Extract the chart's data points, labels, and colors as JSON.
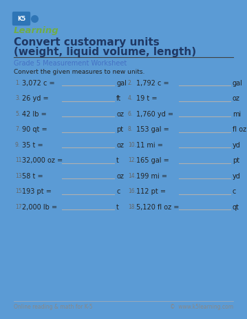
{
  "title_line1": "Convert customary units",
  "title_line2": "(weight, liquid volume, length)",
  "subtitle": "Grade 5 Measurement Worksheet",
  "instruction": "Convert the given measures to new units.",
  "border_color": "#5b9bd5",
  "title_color": "#1f3864",
  "subtitle_color": "#4472c4",
  "bg_color": "#ffffff",
  "footer_left": "Online reading & math for K-5",
  "footer_right": "©  www.k5learning.com",
  "problems": [
    [
      "1.",
      "3,072 c =",
      "gal",
      "2.",
      "1,792 c =",
      "gal"
    ],
    [
      "3.",
      "26 yd =",
      "ft",
      "4.",
      "19 t =",
      "oz"
    ],
    [
      "5.",
      "42 lb =",
      "oz",
      "6.",
      "1,760 yd =",
      "mi"
    ],
    [
      "7.",
      "90 qt =",
      "pt",
      "8.",
      "153 gal =",
      "fl oz"
    ],
    [
      "9.",
      "35 t =",
      "oz",
      "10.",
      "11 mi =",
      "yd"
    ],
    [
      "11.",
      "32,000 oz =",
      "t",
      "12.",
      "165 gal =",
      "pt"
    ],
    [
      "13.",
      "58 t =",
      "oz",
      "14.",
      "199 mi =",
      "yd"
    ],
    [
      "15.",
      "193 pt =",
      "c",
      "16.",
      "112 pt =",
      "c"
    ],
    [
      "17.",
      "2,000 lb =",
      "t",
      "18.",
      "5,120 fl oz =",
      "qt"
    ]
  ],
  "logo_k5_bg": "#2e75b6",
  "logo_k5_fg": "#ffffff",
  "logo_learning_color": "#70ad47",
  "line_color": "#b0b0b0",
  "divider_color": "#404040",
  "num_color": "#666666",
  "text_color": "#222222",
  "footer_color": "#888888",
  "border_width": 8
}
